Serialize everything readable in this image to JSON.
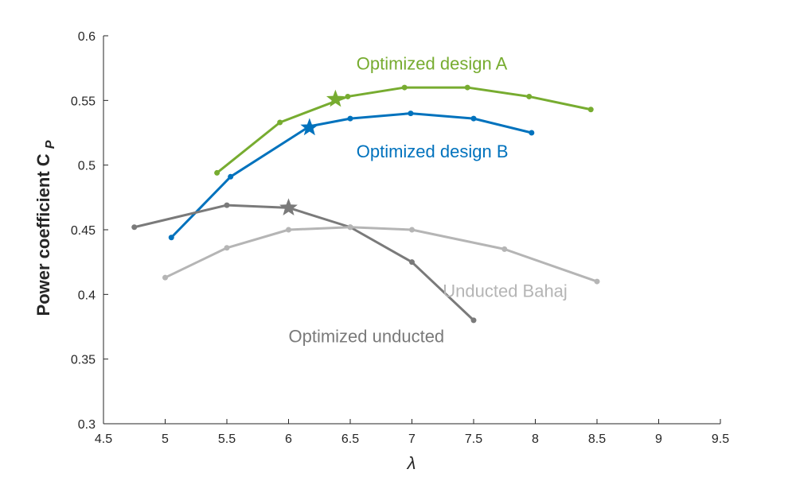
{
  "chart_data": {
    "type": "line",
    "title": "",
    "xlabel": "λ",
    "ylabel": "Power coefficient C",
    "ylabel_subscript": "P",
    "xlim": [
      4.5,
      9.5
    ],
    "ylim": [
      0.3,
      0.6
    ],
    "xticks": [
      4.5,
      5,
      5.5,
      6,
      6.5,
      7,
      7.5,
      8,
      8.5,
      9,
      9.5
    ],
    "yticks": [
      0.3,
      0.35,
      0.4,
      0.45,
      0.5,
      0.55,
      0.6
    ],
    "xtick_labels": [
      "4.5",
      "5",
      "5.5",
      "6",
      "6.5",
      "7",
      "7.5",
      "8",
      "8.5",
      "9",
      "9.5"
    ],
    "ytick_labels": [
      "0.3",
      "0.35",
      "0.4",
      "0.45",
      "0.5",
      "0.55",
      "0.6"
    ],
    "grid": false,
    "legend": "inline labels",
    "series": [
      {
        "name": "Optimized design A",
        "color": "#77ac30",
        "x": [
          5.42,
          5.93,
          6.48,
          6.94,
          7.45,
          7.95,
          8.45
        ],
        "y": [
          0.494,
          0.533,
          0.553,
          0.56,
          0.56,
          0.553,
          0.543
        ],
        "star": {
          "x": 6.38,
          "y": 0.551
        }
      },
      {
        "name": "Optimized design B",
        "color": "#0072bd",
        "x": [
          5.05,
          5.53,
          6.17,
          6.5,
          6.99,
          7.5,
          7.97
        ],
        "y": [
          0.444,
          0.491,
          0.53,
          0.536,
          0.54,
          0.536,
          0.525
        ],
        "star": {
          "x": 6.17,
          "y": 0.529
        }
      },
      {
        "name": "Optimized unducted",
        "color": "#7a7a7a",
        "x": [
          4.75,
          5.5,
          6.0,
          6.5,
          7.0,
          7.5
        ],
        "y": [
          0.452,
          0.469,
          0.467,
          0.452,
          0.425,
          0.38
        ],
        "star": {
          "x": 6.0,
          "y": 0.467
        }
      },
      {
        "name": "Unducted Bahaj",
        "color": "#b5b5b5",
        "x": [
          5.0,
          5.5,
          6.0,
          6.5,
          7.0,
          7.75,
          8.5
        ],
        "y": [
          0.413,
          0.436,
          0.45,
          0.452,
          0.45,
          0.435,
          0.41
        ]
      }
    ],
    "annotations": [
      {
        "text": "Optimized design A",
        "x": 6.55,
        "y": 0.574,
        "color": "#77ac30"
      },
      {
        "text": "Optimized design B",
        "x": 6.55,
        "y": 0.506,
        "color": "#0072bd"
      },
      {
        "text": "Unducted Bahaj",
        "x": 7.25,
        "y": 0.398,
        "color": "#b5b5b5"
      },
      {
        "text": "Optimized unducted",
        "x": 6.0,
        "y": 0.363,
        "color": "#7a7a7a"
      }
    ]
  }
}
